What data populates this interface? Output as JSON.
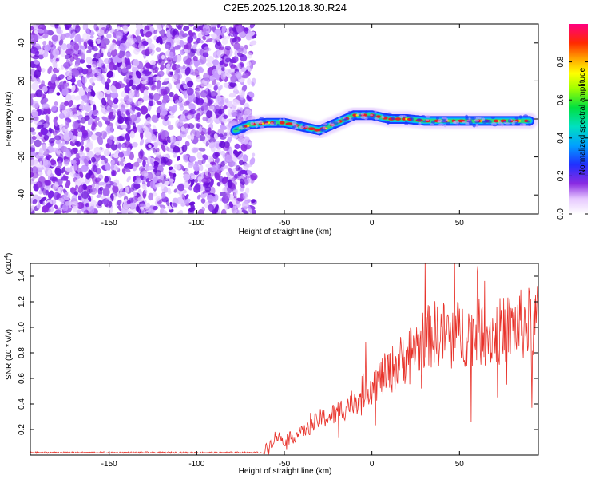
{
  "figure_title": "C2E5.2025.120.18.30.R24",
  "chart_data": [
    {
      "type": "heatmap",
      "title": "C2E5.2025.120.18.30.R24",
      "xlabel": "Height of straight line (km)",
      "ylabel": "Frequency (Hz)",
      "xlim": [
        -195,
        95
      ],
      "ylim": [
        -50,
        50
      ],
      "x_ticks": [
        -150,
        -100,
        -50,
        0,
        50
      ],
      "y_ticks": [
        -40,
        -20,
        0,
        20,
        40
      ],
      "colorbar": {
        "label": "Normalized spectral amplitude",
        "range": [
          0,
          1
        ],
        "ticks": [
          "0.0",
          "0.2",
          "0.4",
          "0.6",
          "0.8"
        ]
      },
      "noise_region_x": [
        -195,
        -70
      ],
      "ridge": {
        "x": [
          -78,
          -70,
          -60,
          -50,
          -40,
          -30,
          -20,
          -10,
          0,
          10,
          20,
          30,
          40,
          50,
          60,
          70,
          80,
          90
        ],
        "frequency_hz": [
          -6,
          -3,
          -2,
          -2,
          -4,
          -6,
          -2,
          2,
          2,
          0,
          0,
          -1,
          -1,
          -1,
          -1,
          -1,
          -1,
          -1
        ]
      },
      "colors": {
        "noise": "#7a1fe6",
        "ridge_edge": "#1a3cff",
        "ridge_mid": "#2fd67a",
        "ridge_core": "#e0202a"
      }
    },
    {
      "type": "line",
      "xlabel": "Height of straight line (km)",
      "ylabel": "SNR (10 * v/v)",
      "y_scale_note": "(x10",
      "y_scale_exp": "4",
      "y_scale_close": ")",
      "xlim": [
        -195,
        95
      ],
      "ylim": [
        0,
        1.5
      ],
      "x_ticks": [
        -150,
        -100,
        -50,
        0,
        50
      ],
      "y_ticks": [
        "0.2",
        "0.4",
        "0.6",
        "0.8",
        "1.0",
        "1.2",
        "1.4"
      ],
      "line_color": "#e8322a",
      "envelope": {
        "x": [
          -195,
          -62,
          -58,
          -55,
          -50,
          -45,
          -40,
          -35,
          -30,
          -25,
          -20,
          -15,
          -10,
          -5,
          0,
          5,
          10,
          15,
          20,
          25,
          30,
          35,
          40,
          50,
          60,
          70,
          80,
          95
        ],
        "y": [
          0.02,
          0.02,
          0.08,
          0.15,
          0.12,
          0.14,
          0.18,
          0.22,
          0.28,
          0.3,
          0.33,
          0.38,
          0.42,
          0.5,
          0.55,
          0.6,
          0.65,
          0.72,
          0.78,
          0.85,
          0.9,
          0.95,
          0.95,
          0.95,
          0.96,
          0.95,
          1.0,
          1.05
        ]
      }
    }
  ]
}
